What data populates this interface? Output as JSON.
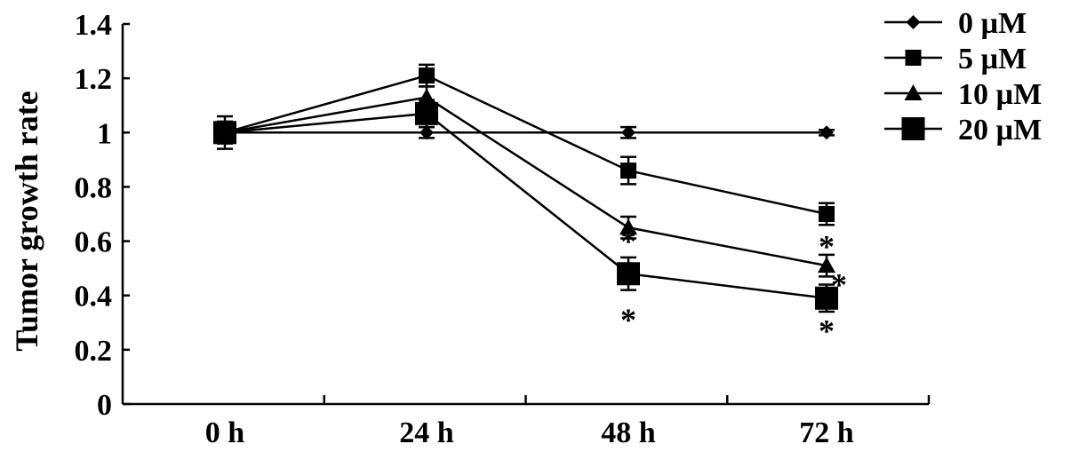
{
  "chart_data": {
    "type": "line",
    "ylabel": "Tumor growth rate",
    "xlabel": "",
    "categories": [
      "0 h",
      "24 h",
      "48 h",
      "72 h"
    ],
    "ylim": [
      0,
      1.4
    ],
    "yticks": [
      0,
      0.2,
      0.4,
      0.6,
      0.8,
      1,
      1.2,
      1.4
    ],
    "ytick_labels": [
      "0",
      "0.2",
      "0.4",
      "0.6",
      "0.8",
      "1",
      "1.2",
      "1.4"
    ],
    "grid": false,
    "legend_position": "top-right",
    "series": [
      {
        "name": "0 µM",
        "marker": "diamond",
        "values": [
          1.0,
          1.0,
          1.0,
          1.0
        ],
        "errors": [
          0.02,
          0.02,
          0.02,
          0.01
        ]
      },
      {
        "name": "5 µM",
        "marker": "square",
        "values": [
          1.0,
          1.21,
          0.86,
          0.7
        ],
        "errors": [
          0.04,
          0.04,
          0.05,
          0.04
        ]
      },
      {
        "name": "10 µM",
        "marker": "triangle",
        "values": [
          1.0,
          1.13,
          0.65,
          0.51
        ],
        "errors": [
          0.04,
          0.04,
          0.04,
          0.04
        ]
      },
      {
        "name": "20 µM",
        "marker": "big-square",
        "values": [
          1.0,
          1.07,
          0.48,
          0.39
        ],
        "errors": [
          0.06,
          0.05,
          0.06,
          0.05
        ]
      }
    ],
    "annotations": [
      {
        "text": "*",
        "category": "48 h",
        "y": 0.62
      },
      {
        "text": "*",
        "category": "48 h",
        "y": 0.33
      },
      {
        "text": "*",
        "category": "72 h",
        "y": 0.6
      },
      {
        "text": "*",
        "category": "72 h",
        "y": 0.46
      },
      {
        "text": "*",
        "category": "72 h",
        "y": 0.29
      }
    ],
    "colors": {
      "line": "#000000",
      "background": "#ffffff"
    }
  }
}
